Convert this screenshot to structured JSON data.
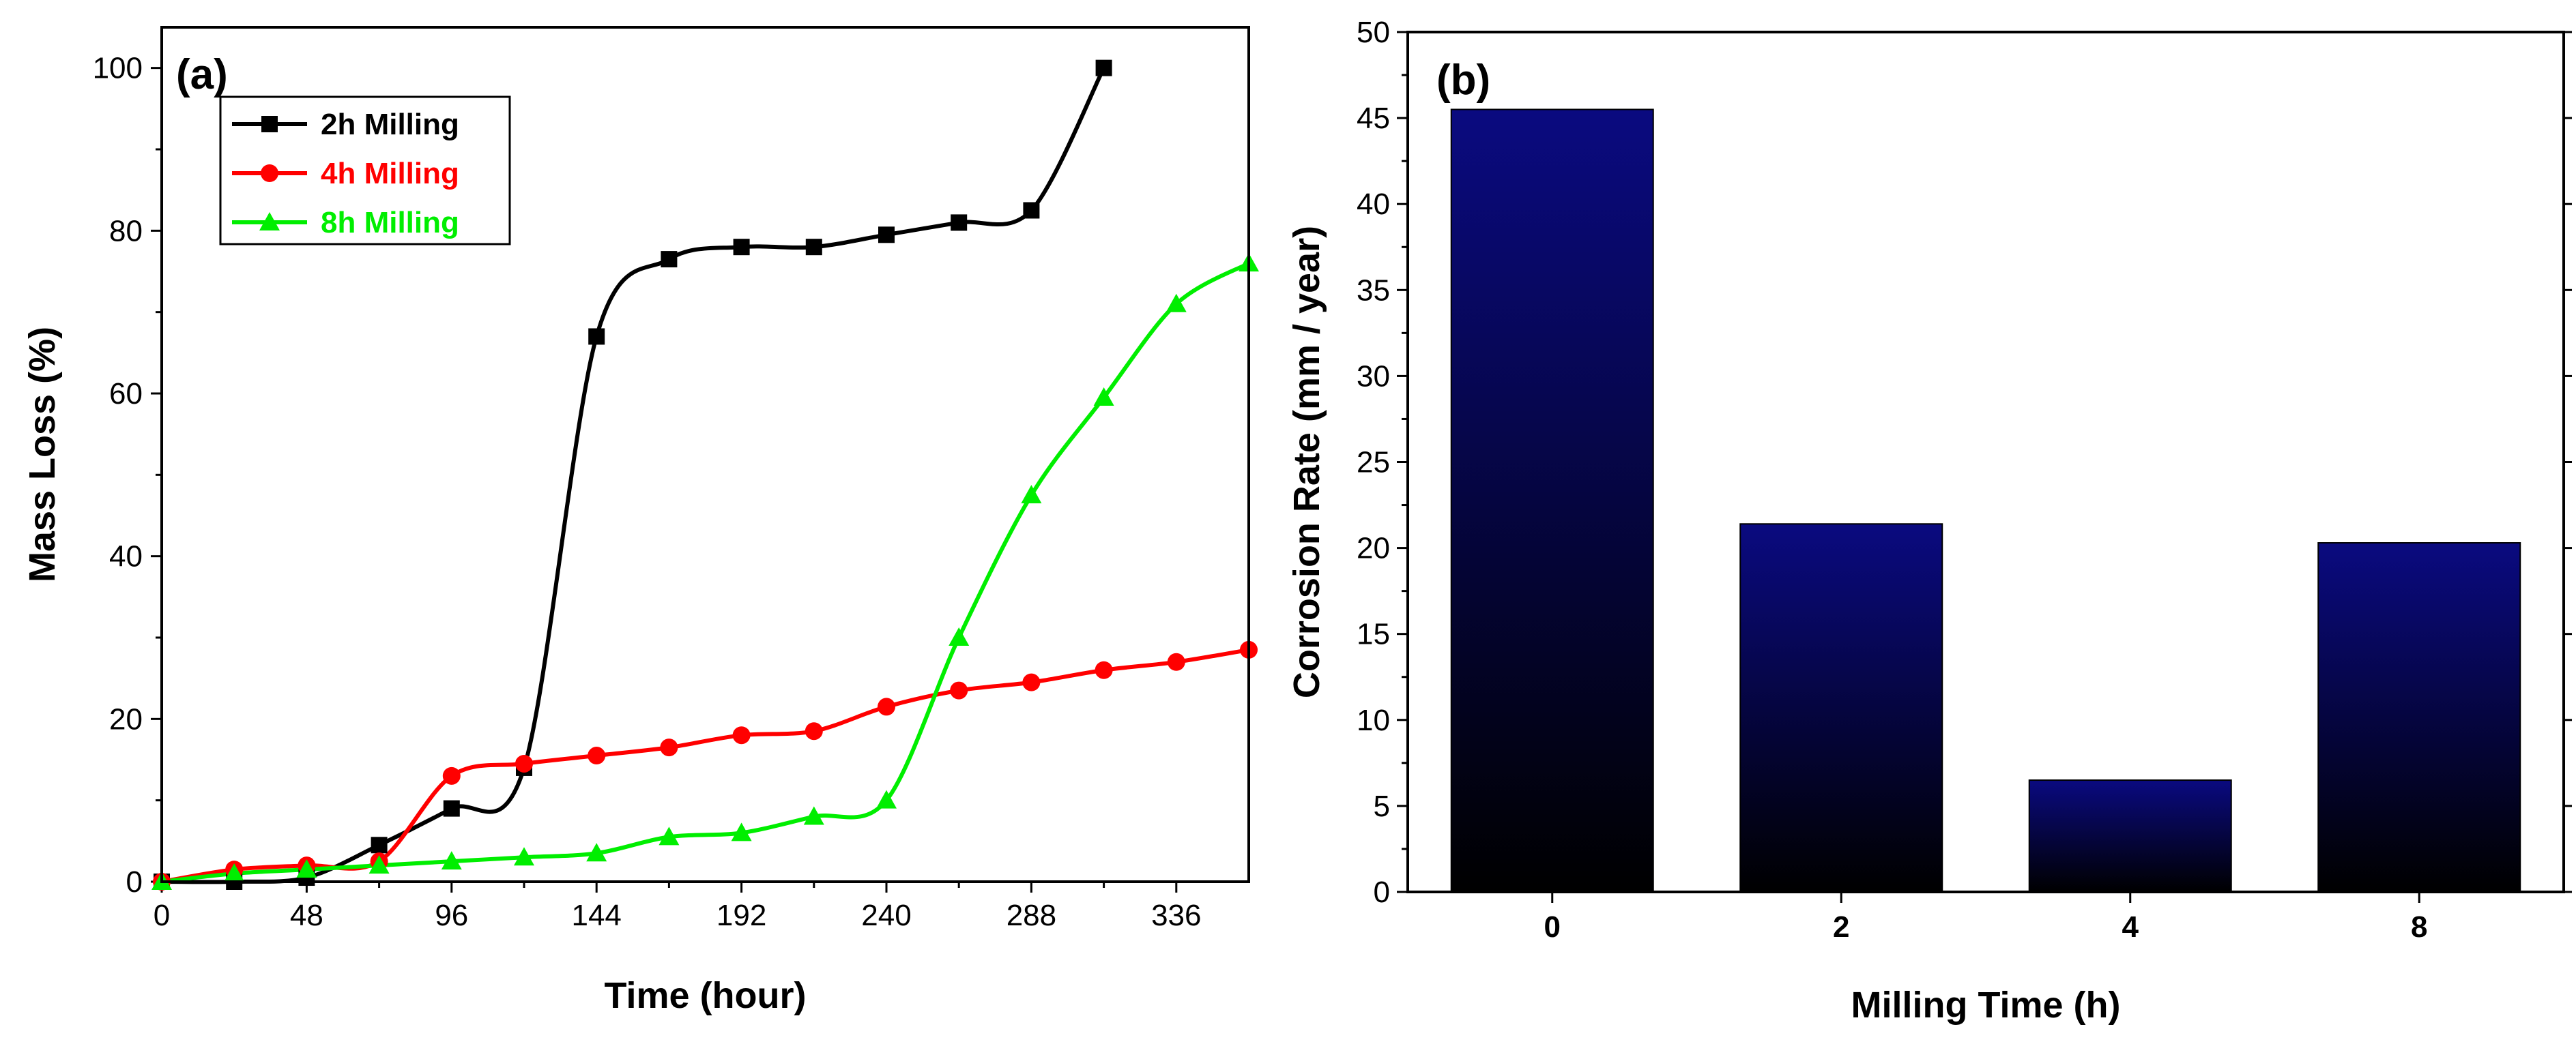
{
  "colors": {
    "series_2h": "#000000",
    "series_4h": "#ff0000",
    "series_8h": "#00ee00",
    "bar_top": "#0a0a80",
    "bar_bottom": "#000000"
  },
  "chart_data": [
    {
      "type": "line",
      "panel_label": "(a)",
      "xlabel": "Time (hour)",
      "ylabel": "Mass Loss (%)",
      "xlim": [
        0,
        360
      ],
      "ylim": [
        0,
        105
      ],
      "xticks": [
        "0",
        "48",
        "96",
        "144",
        "192",
        "240",
        "288",
        "336"
      ],
      "yticks": [
        "0",
        "20",
        "40",
        "60",
        "80",
        "100"
      ],
      "legend_position": "top-left",
      "series": [
        {
          "name": "2h Milling",
          "color": "#000000",
          "marker": "square",
          "x": [
            0,
            24,
            48,
            72,
            96,
            120,
            144,
            168,
            192,
            216,
            240,
            264,
            288,
            312
          ],
          "y": [
            0,
            0,
            0.5,
            4.5,
            9,
            14,
            67,
            76.5,
            78,
            78,
            79.5,
            81,
            82.5,
            100
          ]
        },
        {
          "name": "4h Milling",
          "color": "#ff0000",
          "marker": "circle",
          "x": [
            0,
            24,
            48,
            72,
            96,
            120,
            144,
            168,
            192,
            216,
            240,
            264,
            288,
            312,
            336,
            360
          ],
          "y": [
            0,
            1.5,
            2,
            2.5,
            13,
            14.5,
            15.5,
            16.5,
            18,
            18.5,
            21.5,
            23.5,
            24.5,
            26,
            27,
            28.5
          ]
        },
        {
          "name": "8h Milling",
          "color": "#00ee00",
          "marker": "triangle",
          "x": [
            0,
            24,
            48,
            72,
            96,
            120,
            144,
            168,
            192,
            216,
            240,
            264,
            288,
            312,
            336,
            360
          ],
          "y": [
            0,
            1,
            1.5,
            2,
            2.5,
            3,
            3.5,
            5.5,
            6,
            8,
            10,
            30,
            47.5,
            59.5,
            71,
            76
          ]
        }
      ]
    },
    {
      "type": "bar",
      "panel_label": "(b)",
      "xlabel": "Milling Time (h)",
      "ylabel": "Corrosion Rate (mm / year)",
      "categories": [
        "0",
        "2",
        "4",
        "8"
      ],
      "values": [
        45.5,
        21.4,
        6.5,
        20.3
      ],
      "ylim": [
        0,
        50
      ],
      "yticks": [
        "0",
        "5",
        "10",
        "15",
        "20",
        "25",
        "30",
        "35",
        "40",
        "45",
        "50"
      ]
    }
  ]
}
